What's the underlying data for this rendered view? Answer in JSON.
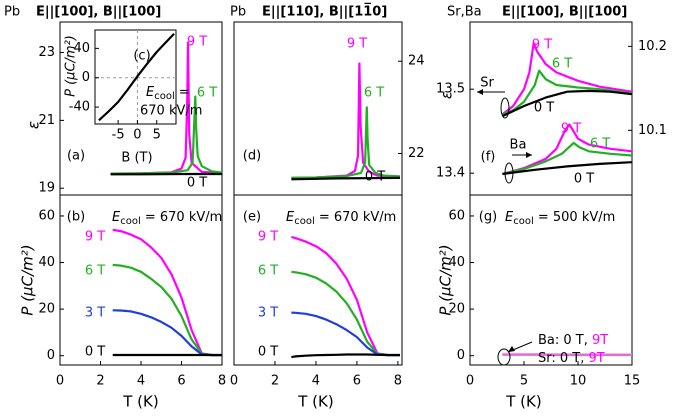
{
  "chart_data": [
    {
      "type": "line",
      "panel_label": "(a)",
      "header": [
        "Pb",
        "E||[100], B||[100]"
      ],
      "ylabel": "ε",
      "xlim": [
        0,
        8
      ],
      "ylim": [
        18.8,
        23.9
      ],
      "yticks": [
        19,
        21,
        23
      ],
      "series": [
        {
          "name": "9 T",
          "color": "#ff00ff",
          "x": [
            2.5,
            4,
            5.5,
            6,
            6.2,
            6.28,
            6.32,
            6.38,
            6.5,
            7,
            8
          ],
          "values": [
            19.43,
            19.44,
            19.47,
            19.58,
            19.9,
            21.5,
            23.3,
            20.6,
            19.75,
            19.48,
            19.45
          ]
        },
        {
          "name": "6 T",
          "color": "#22b022",
          "x": [
            2.5,
            4,
            5.5,
            6.3,
            6.55,
            6.68,
            6.72,
            6.8,
            7,
            7.5,
            8
          ],
          "values": [
            19.43,
            19.44,
            19.46,
            19.53,
            19.75,
            21.7,
            20.8,
            19.95,
            19.65,
            19.5,
            19.46
          ]
        },
        {
          "name": "0 T",
          "color": "#000000",
          "x": [
            2.5,
            4,
            6,
            8
          ],
          "values": [
            19.41,
            19.41,
            19.42,
            19.42
          ]
        }
      ]
    },
    {
      "type": "line",
      "panel_label": "(c)",
      "xlabel": "B (T)",
      "ylabel": "P (μC/m²)",
      "xlim": [
        -11,
        10
      ],
      "xticks": [
        -5,
        0,
        5
      ],
      "ylim": [
        -63,
        65
      ],
      "yticks": [
        -40,
        0,
        40
      ],
      "ecool": {
        "symbol": "E",
        "subscript": "cool",
        "text": " =",
        "text2": "670 kV/m"
      },
      "series": [
        {
          "color": "#000000",
          "x": [
            -10,
            -7.5,
            -5,
            -2.5,
            0,
            2.5,
            5,
            7.5,
            9.5
          ],
          "values": [
            -58,
            -46,
            -33,
            -16,
            2,
            19,
            35,
            49,
            60
          ]
        }
      ]
    },
    {
      "type": "line",
      "panel_label": "(d)",
      "header": [
        "Pb",
        "E||[110], B||[11̅0]"
      ],
      "xlim": [
        0,
        8.2
      ],
      "y2lim": [
        21.1,
        24.85
      ],
      "y2ticks": [
        22,
        24
      ],
      "series": [
        {
          "name": "9 T",
          "color": "#ff00ff",
          "axis": "y2",
          "x": [
            2.8,
            4,
            5.5,
            5.9,
            6.05,
            6.12,
            6.18,
            6.3,
            6.6,
            7,
            8.1
          ],
          "values": [
            21.47,
            21.48,
            21.52,
            21.62,
            21.95,
            23.95,
            22.6,
            21.8,
            21.6,
            21.52,
            21.5
          ]
        },
        {
          "name": "6 T",
          "color": "#22b022",
          "axis": "y2",
          "x": [
            2.8,
            4,
            5.5,
            6.2,
            6.4,
            6.48,
            6.52,
            6.6,
            6.9,
            7.3,
            8.1
          ],
          "values": [
            21.47,
            21.48,
            21.51,
            21.58,
            21.8,
            23.0,
            22.3,
            21.75,
            21.58,
            21.52,
            21.5
          ]
        },
        {
          "name": "0 T",
          "color": "#000000",
          "axis": "y2",
          "x": [
            2.8,
            5,
            8.1
          ],
          "values": [
            21.44,
            21.46,
            21.47
          ]
        }
      ]
    },
    {
      "type": "line",
      "panel_label": "(f)",
      "header": [
        "Sr,Ba",
        "E||[100], B||[100]"
      ],
      "ylabel": "ε",
      "xlim": [
        0,
        15
      ],
      "ylim": [
        13.374,
        13.58
      ],
      "yticks": [
        13.4,
        13.5
      ],
      "y2lim": [
        10.023,
        10.229
      ],
      "y2ticks": [
        10.1,
        10.2
      ],
      "groups": [
        "Sr",
        "Ba"
      ],
      "series": [
        {
          "name": "9 T",
          "color": "#ff00ff",
          "x": [
            3,
            4,
            5,
            5.5,
            5.9,
            6.2,
            7,
            8,
            10,
            12,
            15
          ],
          "values": [
            13.47,
            13.48,
            13.5,
            13.52,
            13.555,
            13.545,
            13.53,
            13.52,
            13.51,
            13.503,
            13.497
          ]
        },
        {
          "name": "6 T",
          "color": "#22b022",
          "x": [
            3,
            4,
            5,
            6,
            6.4,
            7,
            8,
            10,
            12,
            15
          ],
          "values": [
            13.47,
            13.475,
            13.485,
            13.505,
            13.522,
            13.512,
            13.505,
            13.502,
            13.5,
            13.495
          ]
        },
        {
          "name": "0 T",
          "color": "#000000",
          "x": [
            3,
            5,
            7,
            9,
            11,
            13,
            15
          ],
          "values": [
            13.468,
            13.48,
            13.49,
            13.497,
            13.498,
            13.497,
            13.494
          ]
        },
        {
          "name": "9 T",
          "color": "#ff00ff",
          "axis": "y2",
          "x": [
            3,
            5,
            7,
            8,
            8.8,
            9.2,
            10,
            11,
            13,
            15
          ],
          "values": [
            10.048,
            10.055,
            10.066,
            10.078,
            10.1,
            10.107,
            10.09,
            10.083,
            10.078,
            10.075
          ]
        },
        {
          "name": "6 T",
          "color": "#22b022",
          "axis": "y2",
          "x": [
            3,
            5,
            7,
            8.5,
            9.6,
            10.1,
            11,
            13,
            15
          ],
          "values": [
            10.048,
            10.054,
            10.063,
            10.072,
            10.085,
            10.08,
            10.075,
            10.072,
            10.07
          ]
        },
        {
          "name": "0 T",
          "color": "#000000",
          "axis": "y2",
          "x": [
            3,
            6,
            9,
            12,
            15
          ],
          "values": [
            10.048,
            10.053,
            10.057,
            10.06,
            10.062
          ]
        }
      ]
    },
    {
      "type": "line",
      "panel_label": "(b)",
      "xlabel": "T (K)",
      "ylabel": "P (μC/m²)",
      "xlim": [
        0,
        8
      ],
      "xticks": [
        0,
        2,
        4,
        6,
        8
      ],
      "ylim": [
        -4,
        69
      ],
      "yticks": [
        0,
        20,
        40,
        60
      ],
      "ecool": {
        "symbol": "E",
        "subscript": "cool",
        "text": " = 670 kV/m"
      },
      "series": [
        {
          "name": "9 T",
          "color": "#ff00ff",
          "x": [
            2.6,
            3,
            3.5,
            4,
            4.5,
            5,
            5.5,
            6,
            6.5,
            7,
            7.5,
            8
          ],
          "values": [
            54,
            53.5,
            52,
            50,
            46.5,
            42,
            35,
            25,
            11,
            1,
            0.3,
            0.2
          ]
        },
        {
          "name": "6 T",
          "color": "#22b022",
          "x": [
            2.6,
            3,
            3.5,
            4,
            4.5,
            5,
            5.5,
            6,
            6.5,
            7,
            7.5,
            8
          ],
          "values": [
            39,
            38.7,
            37.8,
            36,
            33,
            29.5,
            24.5,
            17,
            7,
            0.8,
            0.3,
            0.2
          ]
        },
        {
          "name": "3 T",
          "color": "#1f3fd8",
          "x": [
            2.6,
            3,
            3.5,
            4,
            4.5,
            5,
            5.5,
            6,
            6.5,
            7,
            7.5,
            8
          ],
          "values": [
            19.5,
            19.4,
            19,
            18,
            16.5,
            14.5,
            12,
            8.5,
            4,
            0.5,
            0.2,
            0.2
          ]
        },
        {
          "name": "0 T",
          "color": "#000000",
          "x": [
            2.6,
            3,
            3.5,
            4,
            4.5,
            5,
            5.5,
            6,
            6.5,
            7,
            7.5,
            8
          ],
          "values": [
            0.3,
            0.3,
            0.3,
            0.3,
            0.3,
            0.3,
            0.3,
            0.3,
            0.3,
            0.3,
            0.3,
            0.3
          ]
        }
      ]
    },
    {
      "type": "line",
      "panel_label": "(e)",
      "xlabel": "T (K)",
      "xlim": [
        0,
        8.2
      ],
      "xticks": [
        0,
        2,
        4,
        6,
        8
      ],
      "ylim": [
        -4,
        69
      ],
      "ecool": {
        "symbol": "E",
        "subscript": "cool",
        "text": " = 670 kV/m"
      },
      "series": [
        {
          "name": "9 T",
          "color": "#ff00ff",
          "x": [
            2.8,
            3,
            3.5,
            4,
            4.5,
            5,
            5.5,
            6,
            6.5,
            7,
            7.5,
            8.1
          ],
          "values": [
            51,
            50.5,
            49,
            47,
            44,
            39.5,
            33,
            24,
            10,
            1,
            0.3,
            0.2
          ]
        },
        {
          "name": "6 T",
          "color": "#22b022",
          "x": [
            2.8,
            3,
            3.5,
            4,
            4.5,
            5,
            5.5,
            6,
            6.5,
            7,
            7.5,
            8.1
          ],
          "values": [
            36,
            35.8,
            35,
            33.5,
            31,
            27.5,
            22.5,
            15.5,
            6,
            0.8,
            0.3,
            0.2
          ]
        },
        {
          "name": "3 T",
          "color": "#1f3fd8",
          "x": [
            2.8,
            3,
            3.5,
            4,
            4.5,
            5,
            5.5,
            6,
            6.5,
            7,
            7.5,
            8.1
          ],
          "values": [
            18.5,
            18.4,
            18,
            17,
            15.5,
            13.5,
            11,
            8,
            3.5,
            0.5,
            0.2,
            0.2
          ]
        },
        {
          "name": "0 T",
          "color": "#000000",
          "x": [
            2.8,
            3,
            3.5,
            4,
            4.5,
            5,
            5.5,
            6,
            6.5,
            7,
            7.5,
            8.1
          ],
          "values": [
            -0.6,
            -0.3,
            0,
            0.2,
            0.3,
            0.4,
            0.5,
            0.5,
            0.5,
            0.4,
            0.3,
            0.3
          ]
        }
      ]
    },
    {
      "type": "line",
      "panel_label": "(g)",
      "xlabel": "T (K)",
      "ylabel": "P (μC/m²)",
      "xlim": [
        0,
        15
      ],
      "xticks": [
        0,
        5,
        10,
        15
      ],
      "ylim": [
        -4,
        69
      ],
      "yticks": [
        0,
        20,
        40,
        60
      ],
      "ecool": {
        "symbol": "E",
        "subscript": "cool",
        "text": " = 500 kV/m"
      },
      "legend": [
        {
          "label": "Ba: 0 T, ",
          "highlight": "9T"
        },
        {
          "label": "Sr: 0 T, ",
          "highlight": "9T"
        }
      ],
      "series": [
        {
          "color": "#f2a6e6",
          "x": [
            3,
            6,
            9,
            12,
            15
          ],
          "values": [
            0.8,
            0.7,
            0.6,
            0.6,
            0.5
          ]
        },
        {
          "color": "#e070d6",
          "x": [
            3,
            6,
            9,
            12,
            15
          ],
          "values": [
            0.4,
            0.4,
            0.3,
            0.3,
            0.3
          ]
        }
      ]
    }
  ]
}
